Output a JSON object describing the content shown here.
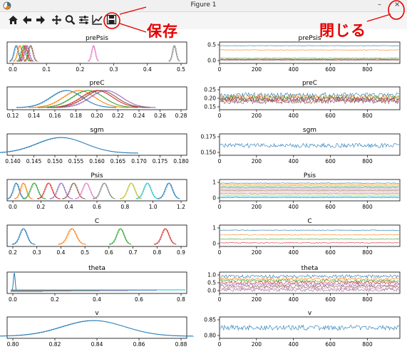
{
  "window": {
    "title": "Figure 1",
    "minimize_glyph": "–",
    "close_glyph": "×"
  },
  "toolbar": {
    "buttons": [
      {
        "name": "home-icon"
      },
      {
        "name": "back-arrow-icon"
      },
      {
        "name": "forward-arrow-icon"
      },
      {
        "name": "pan-icon"
      },
      {
        "name": "zoom-icon"
      },
      {
        "name": "configure-subplots-icon"
      },
      {
        "name": "edit-axis-icon"
      },
      {
        "name": "save-icon"
      }
    ]
  },
  "annotations": {
    "save_label": "保存",
    "close_label": "閉じる",
    "accent_color": "#e60000"
  },
  "rows": [
    {
      "title": "prePsis",
      "left": {
        "ticks": [
          "0.0",
          "0.1",
          "0.2",
          "0.3",
          "0.4",
          "0.5"
        ]
      },
      "right": {
        "yticks": [
          "0.5",
          "0.0"
        ],
        "xticks": [
          "0",
          "200",
          "400",
          "600",
          "800"
        ]
      }
    },
    {
      "title": "preC",
      "left": {
        "ticks": [
          "0.12",
          "0.14",
          "0.16",
          "0.18",
          "0.20",
          "0.22",
          "0.24",
          "0.26",
          "0.28"
        ]
      },
      "right": {
        "yticks": [
          "0.25",
          "0.20",
          "0.15"
        ],
        "xticks": [
          "0",
          "200",
          "400",
          "600",
          "800"
        ]
      }
    },
    {
      "title": "sgm",
      "left": {
        "ticks": [
          "0.140",
          "0.145",
          "0.150",
          "0.155",
          "0.160",
          "0.165",
          "0.170",
          "0.175",
          "0.180"
        ]
      },
      "right": {
        "yticks": [
          "0.175",
          "0.150"
        ],
        "xticks": [
          "0",
          "200",
          "400",
          "600",
          "800"
        ]
      }
    },
    {
      "title": "Psis",
      "left": {
        "ticks": [
          "0.0",
          "0.2",
          "0.4",
          "0.6",
          "0.8",
          "1.0",
          "1.2"
        ]
      },
      "right": {
        "yticks": [
          "1",
          "0"
        ],
        "xticks": [
          "0",
          "200",
          "400",
          "600",
          "800"
        ]
      }
    },
    {
      "title": "C",
      "left": {
        "ticks": [
          "0.2",
          "0.3",
          "0.4",
          "0.5",
          "0.6",
          "0.7",
          "0.8",
          "0.9"
        ]
      },
      "right": {
        "yticks": [
          "1",
          "0"
        ],
        "xticks": [
          "0",
          "200",
          "400",
          "600",
          "800"
        ]
      }
    },
    {
      "title": "theta",
      "left": {
        "ticks": [
          "0.0",
          "0.2",
          "0.4",
          "0.6",
          "0.8"
        ]
      },
      "right": {
        "yticks": [
          "1.0",
          "0.5",
          "0.0"
        ],
        "xticks": [
          "0",
          "200",
          "400",
          "600",
          "800"
        ]
      }
    },
    {
      "title": "v",
      "left": {
        "ticks": [
          "0.80",
          "0.82",
          "0.84",
          "0.86",
          "0.88"
        ]
      },
      "right": {
        "yticks": [
          "0.85",
          "0.80"
        ],
        "xticks": [
          "0",
          "200",
          "400",
          "600",
          "800"
        ]
      }
    }
  ],
  "series_colors": [
    "#1f77b4",
    "#ff7f0e",
    "#2ca02c",
    "#d62728",
    "#9467bd",
    "#8c564b",
    "#e377c2",
    "#7f7f7f",
    "#bcbd22",
    "#17becf"
  ]
}
